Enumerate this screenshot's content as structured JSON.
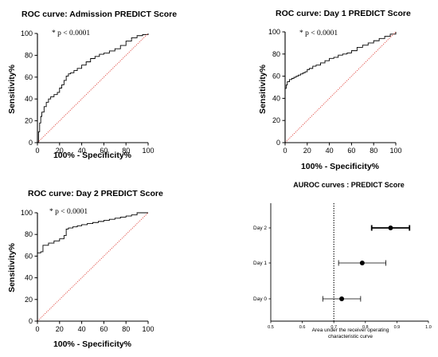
{
  "chart_data": [
    {
      "type": "line",
      "title": "ROC curve: Admission PREDICT Score",
      "xlabel": "100% - Specificity%",
      "ylabel": "Sensitivity%",
      "xlim": [
        0,
        100
      ],
      "ylim": [
        0,
        100
      ],
      "xticks": [
        "0",
        "20",
        "40",
        "60",
        "80",
        "100"
      ],
      "yticks": [
        "0",
        "20",
        "40",
        "60",
        "80",
        "100"
      ],
      "annotation": "* p < 0.0001",
      "series": [
        {
          "style": "step",
          "color": "#000000",
          "x": [
            0,
            1,
            2,
            3,
            4,
            6,
            8,
            10,
            12,
            15,
            18,
            20,
            22,
            24,
            26,
            28,
            30,
            33,
            36,
            40,
            44,
            48,
            52,
            56,
            60,
            65,
            70,
            75,
            80,
            85,
            90,
            95,
            100
          ],
          "y": [
            0,
            10,
            18,
            24,
            28,
            33,
            37,
            40,
            42,
            44,
            46,
            50,
            53,
            57,
            61,
            63,
            64,
            66,
            68,
            71,
            74,
            77,
            79,
            81,
            82,
            84,
            86,
            89,
            93,
            96,
            98,
            99,
            100
          ]
        },
        {
          "style": "dotted",
          "color": "#e0473f",
          "x": [
            0,
            100
          ],
          "y": [
            0,
            100
          ]
        }
      ]
    },
    {
      "type": "line",
      "title": "ROC curve: Day 1 PREDICT Score",
      "xlabel": "100% - Specificity%",
      "ylabel": "Sensitivity%",
      "xlim": [
        0,
        100
      ],
      "ylim": [
        0,
        100
      ],
      "xticks": [
        "0",
        "20",
        "40",
        "60",
        "80",
        "100"
      ],
      "yticks": [
        "0",
        "20",
        "40",
        "60",
        "80",
        "100"
      ],
      "annotation": "* p < 0.0001",
      "series": [
        {
          "style": "step",
          "color": "#000000",
          "x": [
            0,
            1,
            2,
            4,
            6,
            8,
            10,
            12,
            14,
            16,
            18,
            20,
            22,
            25,
            28,
            32,
            36,
            40,
            44,
            48,
            52,
            56,
            60,
            65,
            70,
            75,
            80,
            85,
            90,
            95,
            100
          ],
          "y": [
            49,
            52,
            55,
            57,
            58,
            59,
            60,
            61,
            62,
            63,
            64,
            66,
            67,
            69,
            70,
            72,
            74,
            76,
            77,
            79,
            80,
            81,
            83,
            86,
            88,
            90,
            92,
            94,
            96,
            98,
            100
          ]
        },
        {
          "style": "dotted",
          "color": "#e0473f",
          "x": [
            0,
            100
          ],
          "y": [
            0,
            100
          ]
        }
      ]
    },
    {
      "type": "line",
      "title": "ROC curve: Day 2 PREDICT Score",
      "xlabel": "100% - Specificity%",
      "ylabel": "Sensitivity%",
      "xlim": [
        0,
        100
      ],
      "ylim": [
        0,
        100
      ],
      "xticks": [
        "0",
        "20",
        "40",
        "60",
        "80",
        "100"
      ],
      "yticks": [
        "0",
        "20",
        "40",
        "60",
        "80",
        "100"
      ],
      "annotation": "* p < 0.0001",
      "series": [
        {
          "style": "step",
          "color": "#000000",
          "x": [
            0,
            3,
            5,
            10,
            15,
            20,
            24,
            26,
            28,
            32,
            36,
            40,
            45,
            50,
            55,
            60,
            65,
            70,
            75,
            80,
            85,
            90,
            100
          ],
          "y": [
            63,
            64,
            70,
            72,
            74,
            76,
            79,
            85,
            86,
            87,
            88,
            89,
            90,
            91,
            92,
            93,
            94,
            95,
            96,
            97,
            98,
            100,
            100
          ]
        },
        {
          "style": "dotted",
          "color": "#e0473f",
          "x": [
            0,
            100
          ],
          "y": [
            0,
            100
          ]
        }
      ]
    },
    {
      "type": "scatter",
      "title": "AUROC curves : PREDICT Score",
      "xlabel": "Area under the receiver operating characteristic curve",
      "xlabel_lines": [
        "Area under the receiver operating",
        "characteristic curve"
      ],
      "xlim": [
        0.5,
        1.0
      ],
      "xticks": [
        "0.5",
        "0.6",
        "0.7",
        "0.8",
        "0.9",
        "1.0"
      ],
      "reference_line": 0.7,
      "categories": [
        "Day 2",
        "Day 1",
        "Day 0"
      ],
      "estimates": [
        0.88,
        0.79,
        0.725
      ],
      "ci_low": [
        0.82,
        0.715,
        0.665
      ],
      "ci_high": [
        0.94,
        0.865,
        0.785
      ]
    }
  ]
}
